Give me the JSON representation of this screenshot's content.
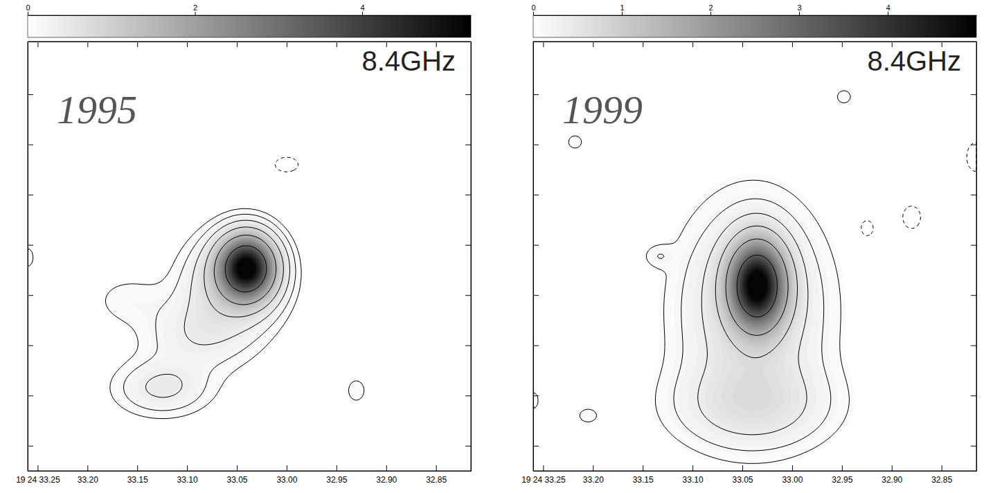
{
  "chart_data": [
    {
      "type": "contour",
      "title": "1995",
      "annotations": [
        "8.4GHz"
      ],
      "xlim": [
        33.26,
        32.815
      ],
      "xticks": [
        {
          "value": 33.25,
          "label": "19 24 33.25"
        },
        {
          "value": 33.2,
          "label": "33.20"
        },
        {
          "value": 33.15,
          "label": "33.15"
        },
        {
          "value": 33.1,
          "label": "33.10"
        },
        {
          "value": 33.05,
          "label": "33.05"
        },
        {
          "value": 33.0,
          "label": "33.00"
        },
        {
          "value": 32.95,
          "label": "32.95"
        },
        {
          "value": 32.9,
          "label": "32.90"
        },
        {
          "value": 32.85,
          "label": "32.85"
        }
      ],
      "ylim": [
        -0.5,
        8.05
      ],
      "yticks": [
        0,
        1,
        2,
        3,
        4,
        5,
        6,
        7
      ],
      "tick_labels": "x",
      "colorbar": {
        "range": [
          0,
          5.3
        ],
        "ticks": [
          0,
          2,
          4
        ]
      },
      "levels": [
        -0.1,
        0.1,
        0.2,
        0.4,
        0.8,
        1.6,
        3.2
      ],
      "components": [
        {
          "x": 33.04,
          "y": 3.55,
          "peak": 5.2,
          "sigma_x": 0.018,
          "sigma_y": 0.4
        },
        {
          "x": 33.055,
          "y": 3.2,
          "peak": 0.8,
          "sigma_x": 0.03,
          "sigma_y": 0.6
        },
        {
          "x": 33.09,
          "y": 2.2,
          "peak": 0.35,
          "sigma_x": 0.035,
          "sigma_y": 0.5
        },
        {
          "x": 33.125,
          "y": 1.15,
          "peak": 0.45,
          "sigma_x": 0.03,
          "sigma_y": 0.35
        },
        {
          "x": 33.16,
          "y": 2.9,
          "peak": 0.14,
          "sigma_x": 0.025,
          "sigma_y": 0.35
        },
        {
          "x": 32.93,
          "y": 1.1,
          "peak": 0.16,
          "sigma_x": 0.008,
          "sigma_y": 0.2
        },
        {
          "x": 33.26,
          "y": 3.75,
          "peak": 0.15,
          "sigma_x": 0.006,
          "sigma_y": 0.2
        },
        {
          "x": 33.0,
          "y": 5.6,
          "peak": -0.16,
          "sigma_x": 0.012,
          "sigma_y": 0.15
        }
      ]
    },
    {
      "type": "contour",
      "title": "1999",
      "annotations": [
        "8.4GHz"
      ],
      "xlim": [
        33.26,
        32.815
      ],
      "xticks": [
        {
          "value": 33.25,
          "label": "19 24 33.25"
        },
        {
          "value": 33.2,
          "label": "33.20"
        },
        {
          "value": 33.15,
          "label": "33.15"
        },
        {
          "value": 33.1,
          "label": "33.10"
        },
        {
          "value": 33.05,
          "label": "33.05"
        },
        {
          "value": 33.0,
          "label": "33.00"
        },
        {
          "value": 32.95,
          "label": "32.95"
        },
        {
          "value": 32.9,
          "label": "32.90"
        },
        {
          "value": 32.85,
          "label": "32.85"
        }
      ],
      "ylim": [
        -0.5,
        8.05
      ],
      "yticks": [
        0,
        1,
        2,
        3,
        4,
        5,
        6,
        7
      ],
      "tick_labels": "x",
      "colorbar": {
        "range": [
          0,
          5.0
        ],
        "ticks": [
          0,
          1,
          2,
          3,
          4
        ]
      },
      "levels": [
        -0.1,
        0.1,
        0.2,
        0.4,
        0.8,
        1.6,
        3.2
      ],
      "components": [
        {
          "x": 33.035,
          "y": 3.2,
          "peak": 4.9,
          "sigma_x": 0.018,
          "sigma_y": 0.55
        },
        {
          "x": 33.04,
          "y": 2.7,
          "peak": 0.7,
          "sigma_x": 0.045,
          "sigma_y": 1.3
        },
        {
          "x": 33.04,
          "y": 0.8,
          "peak": 0.5,
          "sigma_x": 0.05,
          "sigma_y": 0.55
        },
        {
          "x": 33.134,
          "y": 3.78,
          "peak": 0.15,
          "sigma_x": 0.01,
          "sigma_y": 0.15
        },
        {
          "x": 33.218,
          "y": 6.05,
          "peak": 0.14,
          "sigma_x": 0.008,
          "sigma_y": 0.15
        },
        {
          "x": 32.948,
          "y": 6.95,
          "peak": 0.14,
          "sigma_x": 0.008,
          "sigma_y": 0.15
        },
        {
          "x": 33.205,
          "y": 0.6,
          "peak": 0.14,
          "sigma_x": 0.01,
          "sigma_y": 0.15
        },
        {
          "x": 33.26,
          "y": 0.9,
          "peak": 0.14,
          "sigma_x": 0.006,
          "sigma_y": 0.2
        },
        {
          "x": 32.925,
          "y": 4.33,
          "peak": -0.15,
          "sigma_x": 0.008,
          "sigma_y": 0.2
        },
        {
          "x": 32.88,
          "y": 4.55,
          "peak": -0.15,
          "sigma_x": 0.01,
          "sigma_y": 0.25
        },
        {
          "x": 32.815,
          "y": 5.75,
          "peak": -0.16,
          "sigma_x": 0.01,
          "sigma_y": 0.3
        }
      ]
    }
  ]
}
